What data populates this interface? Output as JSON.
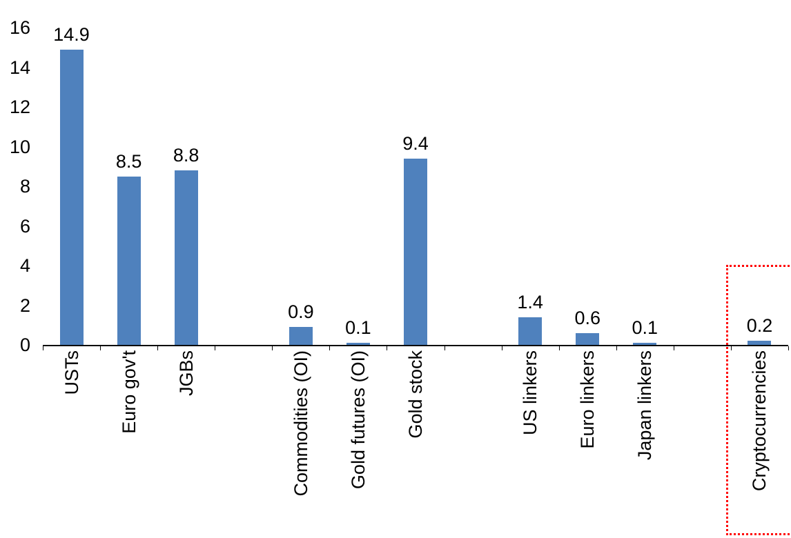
{
  "chart_data": {
    "type": "bar",
    "title": "",
    "xlabel": "",
    "ylabel": "",
    "categories": [
      "USTs",
      "Euro gov't",
      "JGBs",
      "Commodities (OI)",
      "Gold futures (OI)",
      "Gold stock",
      "US linkers",
      "Euro linkers",
      "Japan linkers",
      "Cryptocurrencies"
    ],
    "values": [
      14.9,
      8.5,
      8.8,
      0.9,
      0.1,
      9.4,
      1.4,
      0.6,
      0.1,
      0.2
    ],
    "value_labels": [
      "14.9",
      "8.5",
      "8.8",
      "0.9",
      "0.1",
      "9.4",
      "1.4",
      "0.6",
      "0.1",
      "0.2"
    ],
    "ylim": [
      0,
      16
    ],
    "yticks": [
      0,
      2,
      4,
      6,
      8,
      10,
      12,
      14,
      16
    ],
    "grid": false,
    "legend": "none",
    "bar_color": "#4f81bd",
    "group_gaps_after": [
      2,
      5,
      8
    ],
    "highlight": {
      "category": "Cryptocurrencies",
      "index": 9,
      "box_color": "#ff0000",
      "box_style": "dotted"
    }
  }
}
